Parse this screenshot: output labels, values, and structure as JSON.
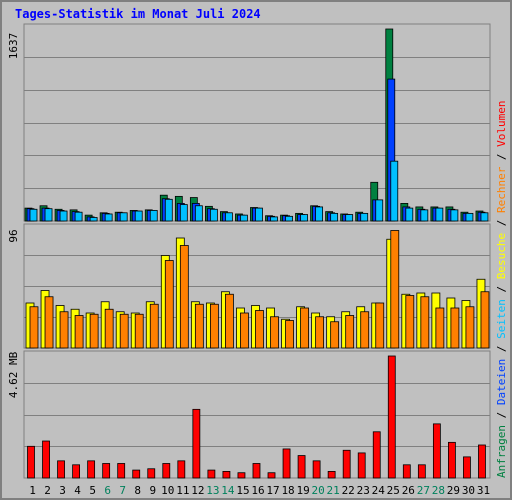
{
  "title": "Tages-Statistik im Monat Juli 2024",
  "colors": {
    "bg": "#c0c0c0",
    "grid": "#808080",
    "hits": "#008040",
    "files": "#0040ff",
    "pages": "#00c0ff",
    "visits": "#ffff00",
    "sites": "#ff8000",
    "volume": "#ff0000",
    "weekend": "#00805c",
    "weekday": "#000000"
  },
  "right_legend": {
    "top": [
      {
        "text": "Anfragen",
        "color": "#008040"
      },
      {
        "text": "/",
        "color": "#000000"
      },
      {
        "text": "Dateien",
        "color": "#0040ff"
      },
      {
        "text": "/",
        "color": "#000000"
      },
      {
        "text": "Seiten",
        "color": "#00c0ff"
      },
      {
        "text": "/",
        "color": "#000000"
      },
      {
        "text": "Besuche",
        "color": "#ffff00"
      },
      {
        "text": "/",
        "color": "#000000"
      },
      {
        "text": "Rechner",
        "color": "#ff8000"
      },
      {
        "text": "/",
        "color": "#000000"
      },
      {
        "text": "Volumen",
        "color": "#ff0000"
      }
    ]
  },
  "chart_data": [
    {
      "type": "bar",
      "panel": "top",
      "ylabel": "1637",
      "ylim": [
        0,
        1637
      ],
      "categories": [
        "1",
        "2",
        "3",
        "4",
        "5",
        "6",
        "7",
        "8",
        "9",
        "10",
        "11",
        "12",
        "13",
        "14",
        "15",
        "16",
        "17",
        "18",
        "19",
        "20",
        "21",
        "22",
        "23",
        "24",
        "25",
        "26",
        "27",
        "28",
        "29",
        "30",
        "31"
      ],
      "weekend_days": [
        6,
        7,
        13,
        14,
        20,
        21,
        27,
        28
      ],
      "series": [
        {
          "name": "Anfragen",
          "values": [
            110,
            130,
            100,
            95,
            50,
            70,
            75,
            90,
            95,
            220,
            210,
            200,
            125,
            80,
            60,
            115,
            45,
            50,
            65,
            130,
            80,
            60,
            75,
            330,
            1637,
            150,
            120,
            120,
            120,
            75,
            85
          ]
        },
        {
          "name": "Dateien",
          "values": [
            105,
            110,
            90,
            80,
            35,
            65,
            70,
            85,
            90,
            190,
            150,
            150,
            105,
            70,
            50,
            110,
            40,
            45,
            55,
            125,
            70,
            55,
            65,
            180,
            1210,
            120,
            100,
            110,
            100,
            65,
            75
          ]
        },
        {
          "name": "Seiten",
          "values": [
            100,
            105,
            85,
            75,
            30,
            60,
            70,
            85,
            90,
            185,
            140,
            130,
            100,
            70,
            50,
            110,
            35,
            40,
            55,
            120,
            65,
            55,
            65,
            180,
            510,
            110,
            95,
            110,
            95,
            65,
            70
          ]
        }
      ]
    },
    {
      "type": "bar",
      "panel": "middle",
      "ylabel": "96",
      "ylim": [
        0,
        96
      ],
      "categories": [
        "1",
        "2",
        "3",
        "4",
        "5",
        "6",
        "7",
        "8",
        "9",
        "10",
        "11",
        "12",
        "13",
        "14",
        "15",
        "16",
        "17",
        "18",
        "19",
        "20",
        "21",
        "22",
        "23",
        "24",
        "25",
        "26",
        "27",
        "28",
        "29",
        "30",
        "31"
      ],
      "series": [
        {
          "name": "Besuche",
          "values": [
            36,
            46,
            34,
            31,
            28,
            37,
            29,
            28,
            37,
            74,
            88,
            37,
            36,
            45,
            32,
            34,
            32,
            23,
            33,
            28,
            25,
            29,
            33,
            36,
            87,
            43,
            44,
            44,
            40,
            38,
            55
          ]
        },
        {
          "name": "Rechner",
          "values": [
            33,
            41,
            29,
            26,
            27,
            31,
            27,
            27,
            35,
            70,
            82,
            35,
            35,
            43,
            28,
            30,
            25,
            22,
            32,
            25,
            21,
            26,
            29,
            36,
            94,
            42,
            41,
            32,
            32,
            33,
            45
          ]
        }
      ]
    },
    {
      "type": "bar",
      "panel": "bottom",
      "ylabel": "4.62 MB",
      "ylim": [
        0,
        4.62
      ],
      "categories": [
        "1",
        "2",
        "3",
        "4",
        "5",
        "6",
        "7",
        "8",
        "9",
        "10",
        "11",
        "12",
        "13",
        "14",
        "15",
        "16",
        "17",
        "18",
        "19",
        "20",
        "21",
        "22",
        "23",
        "24",
        "25",
        "26",
        "27",
        "28",
        "29",
        "30",
        "31"
      ],
      "series": [
        {
          "name": "Volumen",
          "values": [
            1.2,
            1.4,
            0.65,
            0.5,
            0.65,
            0.55,
            0.55,
            0.3,
            0.35,
            0.55,
            0.65,
            2.6,
            0.3,
            0.25,
            0.2,
            0.55,
            0.2,
            1.1,
            0.85,
            0.65,
            0.25,
            1.05,
            0.95,
            1.75,
            4.62,
            0.5,
            0.5,
            2.05,
            1.35,
            0.8,
            1.25
          ]
        }
      ]
    }
  ]
}
